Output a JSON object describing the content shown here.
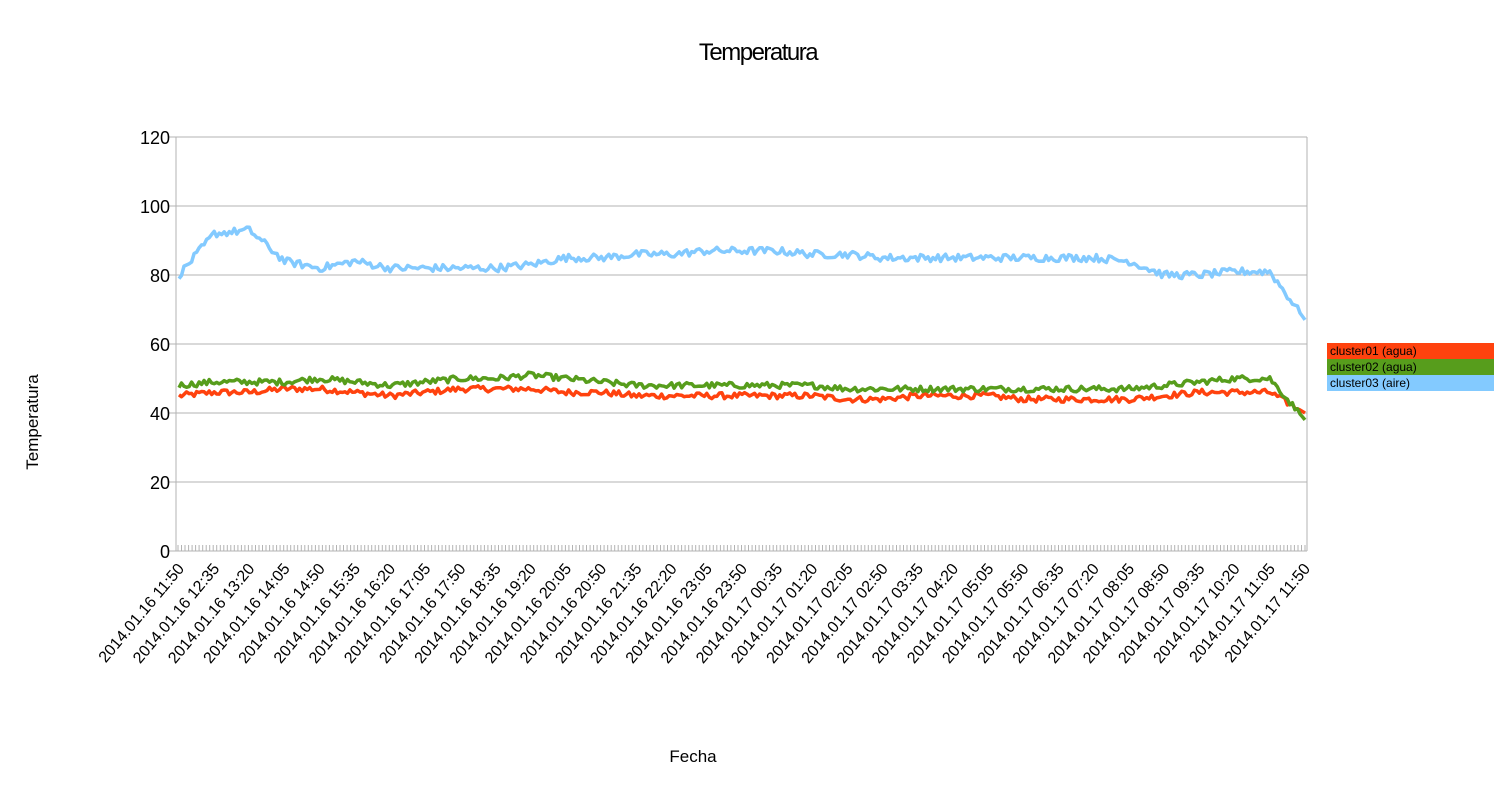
{
  "chart_data": {
    "type": "line",
    "title": "Temperatura",
    "xlabel": "Fecha",
    "ylabel": "Temperatura",
    "ylim": [
      0,
      120
    ],
    "yticks": [
      0,
      20,
      40,
      60,
      80,
      100,
      120
    ],
    "grid": true,
    "legend_position": "right",
    "x": [
      "2014.01.16 11:50",
      "2014.01.16 12:35",
      "2014.01.16 13:20",
      "2014.01.16 14:05",
      "2014.01.16 14:50",
      "2014.01.16 15:35",
      "2014.01.16 16:20",
      "2014.01.16 17:05",
      "2014.01.16 17:50",
      "2014.01.16 18:35",
      "2014.01.16 19:20",
      "2014.01.16 20:05",
      "2014.01.16 20:50",
      "2014.01.16 21:35",
      "2014.01.16 22:20",
      "2014.01.16 23:05",
      "2014.01.16 23:50",
      "2014.01.17 00:35",
      "2014.01.17 01:20",
      "2014.01.17 02:05",
      "2014.01.17 02:50",
      "2014.01.17 03:35",
      "2014.01.17 04:20",
      "2014.01.17 05:05",
      "2014.01.17 05:50",
      "2014.01.17 06:35",
      "2014.01.17 07:20",
      "2014.01.17 08:05",
      "2014.01.17 08:50",
      "2014.01.17 09:35",
      "2014.01.17 10:20",
      "2014.01.17 11:05",
      "2014.01.17 11:50"
    ],
    "series": [
      {
        "name": "cluster01 (agua)",
        "color": "#ff420e",
        "values": [
          45,
          46,
          46,
          47,
          47,
          46,
          45,
          46,
          47,
          47,
          47,
          46,
          46,
          45,
          45,
          45,
          45,
          45,
          45,
          44,
          44,
          45,
          45,
          45,
          44,
          44,
          44,
          44,
          45,
          46,
          46,
          46,
          40
        ]
      },
      {
        "name": "cluster02 (agua)",
        "color": "#579d1c",
        "values": [
          48,
          49,
          49,
          49,
          50,
          49,
          48,
          49,
          50,
          50,
          51,
          50,
          49,
          48,
          48,
          48,
          48,
          48,
          48,
          47,
          47,
          47,
          47,
          47,
          47,
          47,
          47,
          47,
          48,
          49,
          50,
          50,
          38
        ]
      },
      {
        "name": "cluster03 (aire)",
        "color": "#83caff",
        "values": [
          80,
          92,
          93,
          84,
          82,
          84,
          82,
          82,
          82,
          82,
          83,
          85,
          85,
          86,
          86,
          87,
          87,
          87,
          86,
          86,
          85,
          85,
          85,
          85,
          85,
          85,
          85,
          84,
          80,
          80,
          81,
          81,
          67
        ]
      }
    ]
  }
}
